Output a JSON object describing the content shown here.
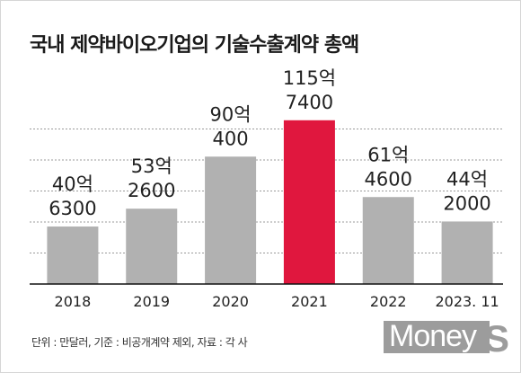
{
  "title": "국내 제약바이오기업의 기술수출계약 총액",
  "footnote": "단위 : 만달러, 기준 : 비공개계약 제외, 자료 : 각 사",
  "logo": {
    "text": "Money",
    "suffix": "S"
  },
  "colors": {
    "bar": "#b1b1b1",
    "highlight": "#e0173e",
    "grid": "#9a9a9a",
    "baseline": "#111111"
  },
  "chart_data": {
    "type": "bar",
    "title": "국내 제약바이오기업의 기술수출계약 총액",
    "unit": "만달러",
    "categories": [
      "2018",
      "2019",
      "2020",
      "2021",
      "2022",
      "2023. 11"
    ],
    "values": [
      406300,
      532600,
      900400,
      1157400,
      614600,
      442000
    ],
    "data_labels": [
      [
        "40억",
        "6300"
      ],
      [
        "53억",
        "2600"
      ],
      [
        "90억",
        "400"
      ],
      [
        "115억",
        "7400"
      ],
      [
        "61억",
        "4600"
      ],
      [
        "44억",
        "2000"
      ]
    ],
    "highlight_index": 3,
    "ylim": [
      0,
      1550000
    ],
    "grid": true,
    "legend": "none"
  }
}
